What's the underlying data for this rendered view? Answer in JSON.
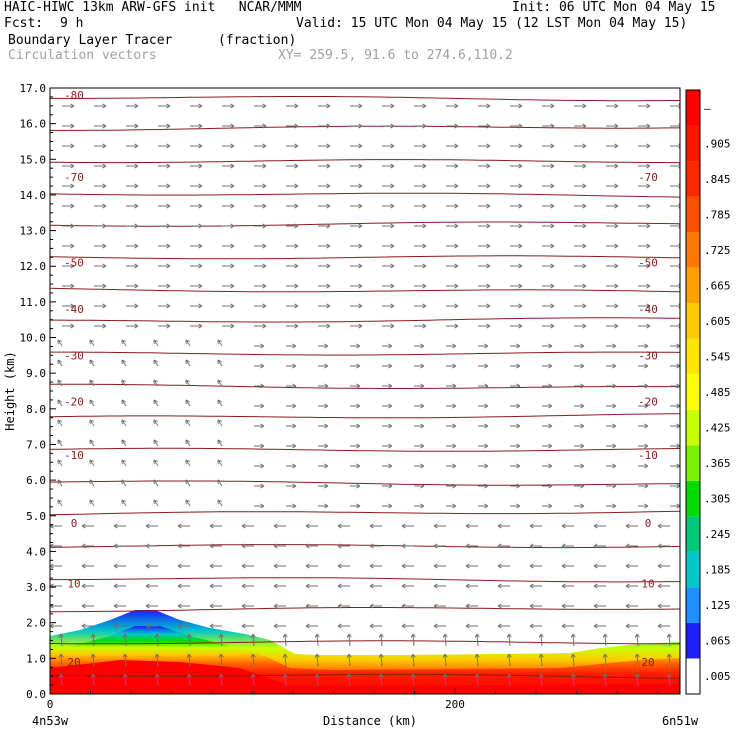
{
  "header": {
    "title_left": "HAIC-HIWC 13km ARW-GFS init   NCAR/MMM",
    "fcst_label": "Fcst:",
    "fcst_value": "9 h",
    "init": "Init: 06 UTC Mon 04 May 15",
    "valid": "Valid: 15 UTC Mon 04 May 15 (12 LST Mon 04 May 15)",
    "field_name": "Boundary Layer Tracer",
    "field_units": "(fraction)",
    "overlay_name": "Circulation vectors",
    "cross_section": "XY= 259.5, 91.6 to 274.6,110.2"
  },
  "colors": {
    "contour": "#8b1a1a",
    "vector": "#707070",
    "tracer_low": "#0000ff",
    "tracer_high": "#ff0000"
  },
  "chart_data": {
    "type": "heatmap",
    "title": "Boundary Layer Tracer",
    "ylabel": "Height (km)",
    "xlabel": "Distance (km)",
    "ylim": [
      0,
      17
    ],
    "x_ticks": [
      "0",
      "200"
    ],
    "x_end_labels": [
      "4n53w",
      "6n51w"
    ],
    "y_ticks": [
      "0.0",
      "1.0",
      "2.0",
      "3.0",
      "4.0",
      "5.0",
      "6.0",
      "7.0",
      "8.0",
      "9.0",
      "10.0",
      "11.0",
      "12.0",
      "13.0",
      "14.0",
      "15.0",
      "16.0",
      "17.0"
    ],
    "colorbar_labels": [
      ".005",
      ".065",
      ".125",
      ".185",
      ".245",
      ".305",
      ".365",
      ".425",
      ".485",
      ".545",
      ".605",
      ".665",
      ".725",
      ".785",
      ".845",
      ".905",
      "–"
    ],
    "colorbar_colors": [
      "#ffffff",
      "#1e1eff",
      "#1e90ff",
      "#00c8c8",
      "#00c878",
      "#00dc00",
      "#78f000",
      "#c8ff00",
      "#ffff00",
      "#ffe600",
      "#ffc800",
      "#ffa000",
      "#ff7800",
      "#ff5000",
      "#ff2800",
      "#ff1400",
      "#ff0000"
    ],
    "contours": [
      {
        "label": "-80",
        "height": 16.8
      },
      {
        "label": "-70",
        "height": 14.5
      },
      {
        "label": "-50",
        "height": 12.1
      },
      {
        "label": "-40",
        "height": 10.8
      },
      {
        "label": "-30",
        "height": 9.5
      },
      {
        "label": "-20",
        "height": 8.2
      },
      {
        "label": "-10",
        "height": 6.7
      },
      {
        "label": "0",
        "height": 4.8
      },
      {
        "label": "10",
        "height": 3.1
      },
      {
        "label": "20",
        "height": 0.9
      }
    ]
  }
}
